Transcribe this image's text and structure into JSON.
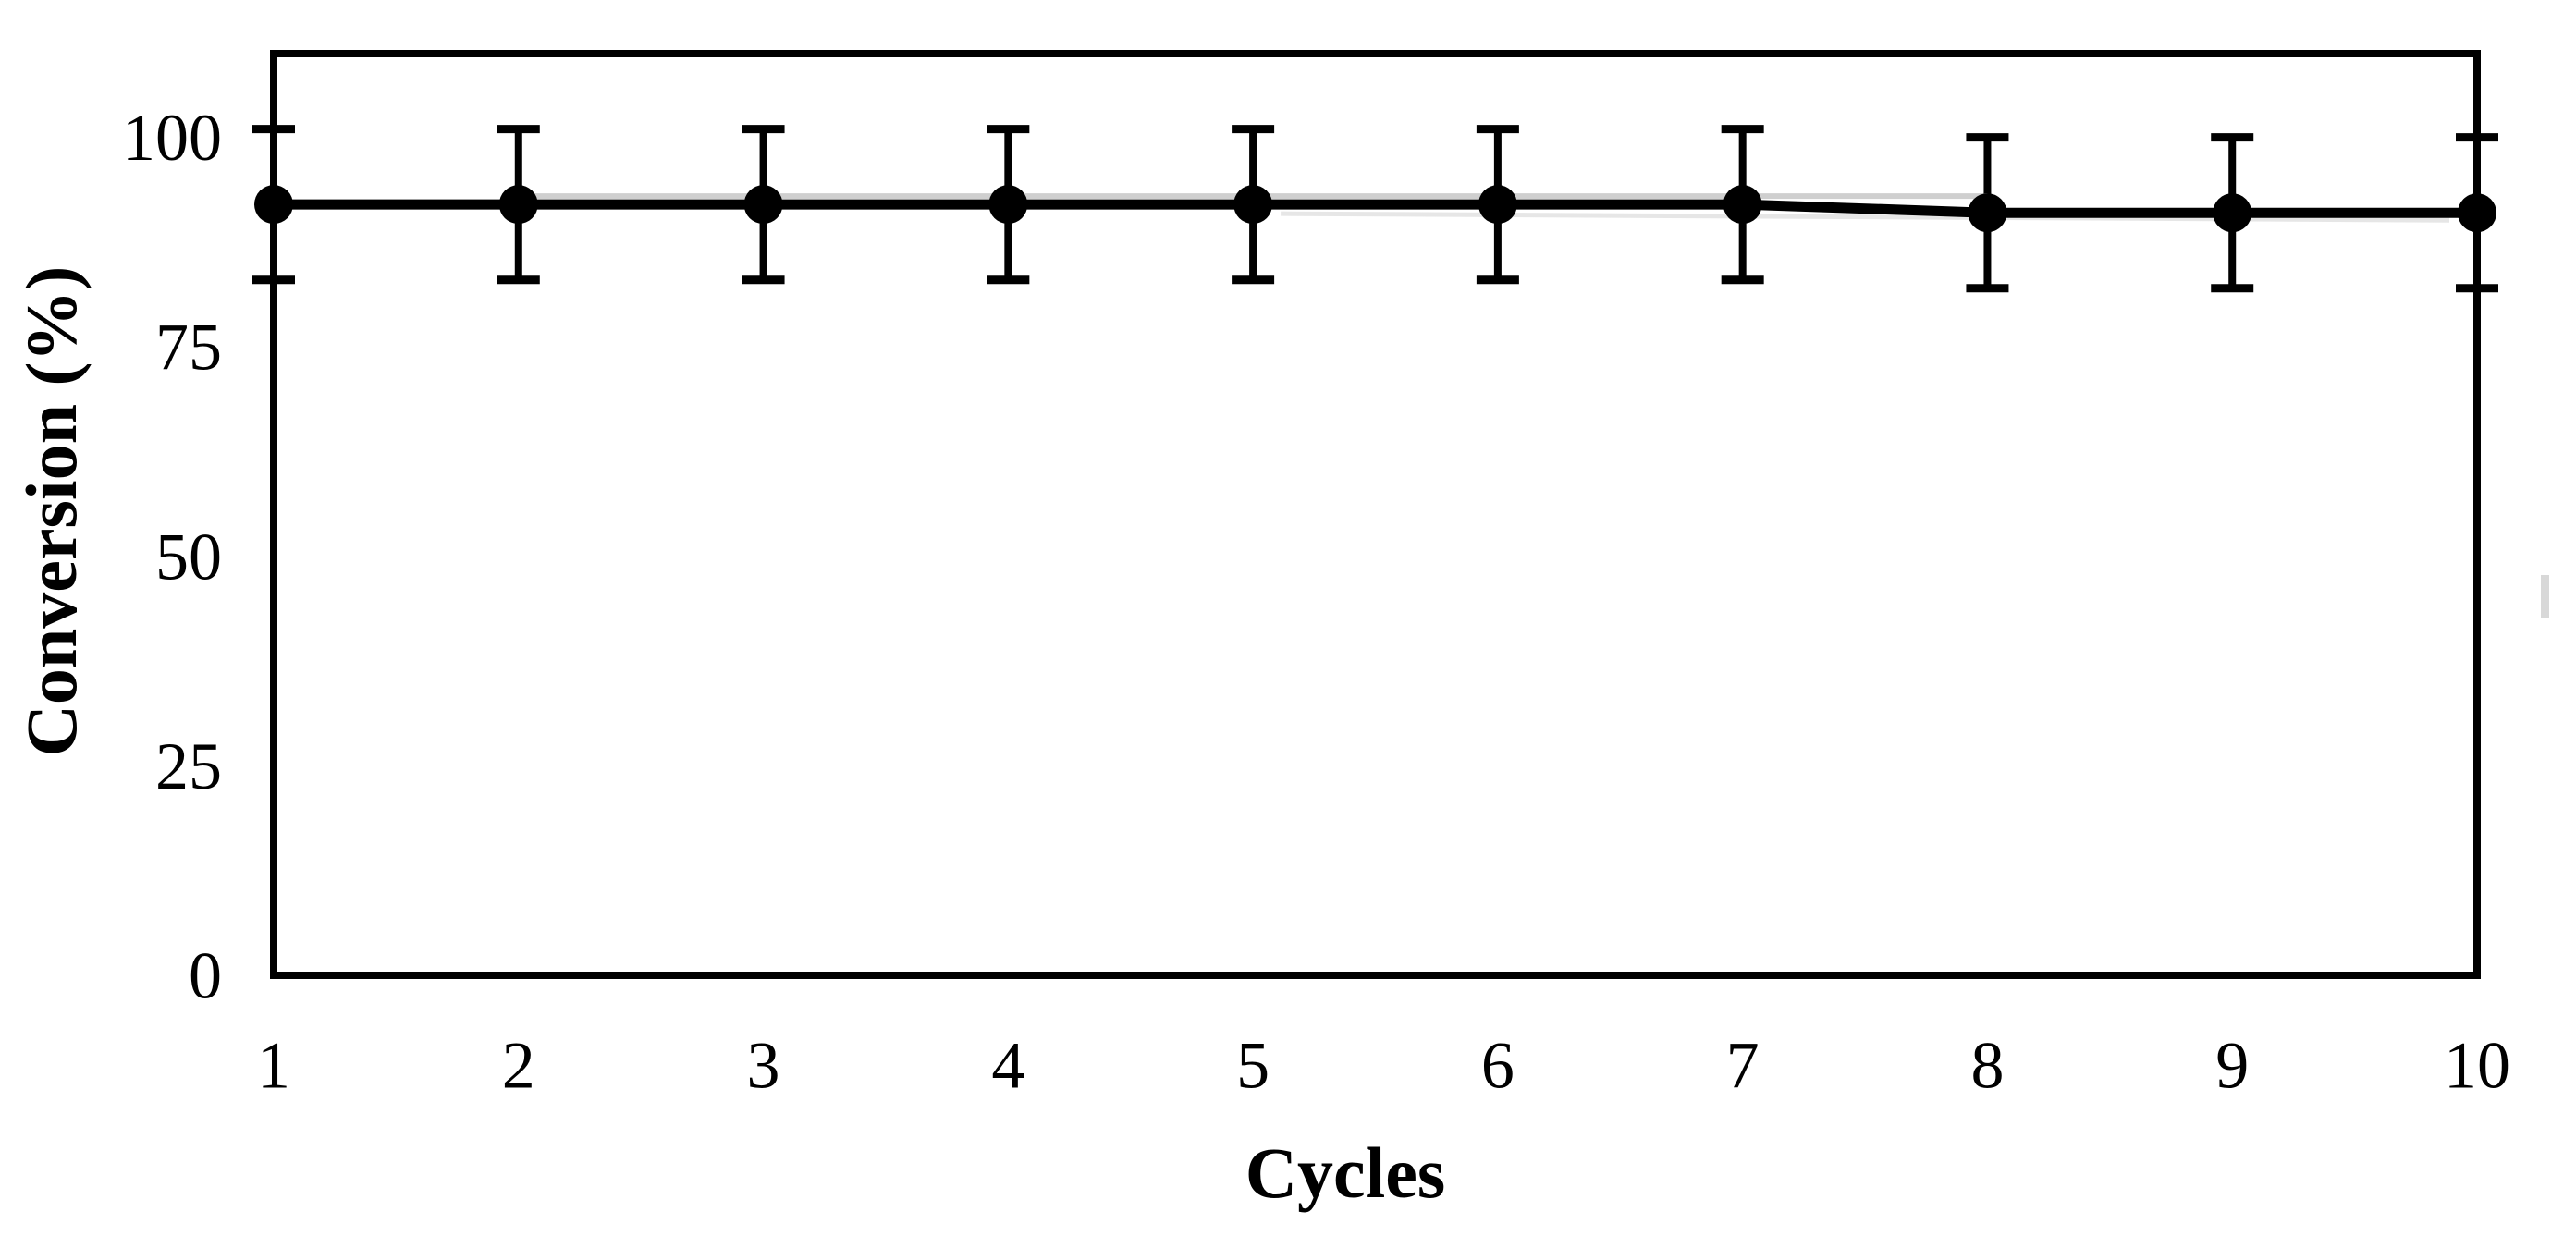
{
  "figure": {
    "background_color": "#ffffff",
    "ink_color": "#000000",
    "artifact_color": "#d8d8d8",
    "echo_color_dark": "#a0a0a0",
    "echo_color_light": "#d2d2d2"
  },
  "chart_data": {
    "type": "line",
    "title": "",
    "xlabel": "Cycles",
    "ylabel": "Conversion (%)",
    "x": [
      1,
      2,
      3,
      4,
      5,
      6,
      7,
      8,
      9,
      10
    ],
    "x_tick_labels": [
      "1",
      "2",
      "3",
      "4",
      "5",
      "6",
      "7",
      "8",
      "9",
      "10"
    ],
    "y_ticks": [
      0,
      25,
      50,
      75,
      100
    ],
    "y_tick_labels": [
      "0",
      "25",
      "50",
      "75",
      "100"
    ],
    "xlim": [
      1,
      10
    ],
    "ylim": [
      0,
      110
    ],
    "grid": false,
    "legend": "none",
    "series": [
      {
        "name": "Conversion",
        "marker": "filled-circle",
        "color": "#000000",
        "values": [
          92,
          92,
          92,
          92,
          92,
          92,
          92,
          91,
          91,
          91
        ],
        "error_plus": [
          9,
          9,
          9,
          9,
          9,
          9,
          9,
          9,
          9,
          9
        ],
        "error_minus": [
          9,
          9,
          9,
          9,
          9,
          9,
          9,
          9,
          9,
          9
        ]
      }
    ]
  }
}
